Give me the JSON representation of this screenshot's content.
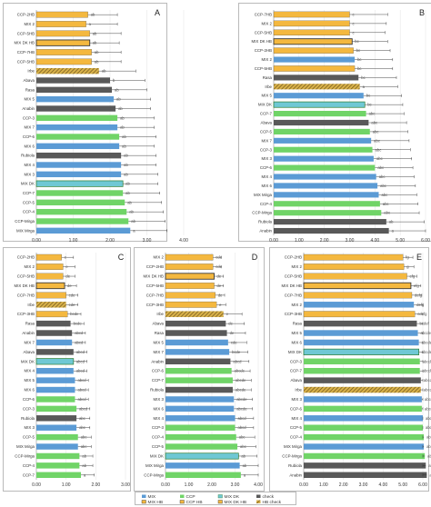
{
  "colors": {
    "MIX": "#5b9bd5",
    "CCP": "#70d467",
    "MIX DK": "#6fc8d4",
    "check": "#595959",
    "MIX HB": "#f4b83f",
    "CCP HB": "#f4b83f",
    "MIX DK HB": "#f4b83f",
    "HB check": "#b48a2a"
  },
  "legend": {
    "items": [
      {
        "label": "MIX",
        "key": "MIX"
      },
      {
        "label": "CCP",
        "key": "CCP"
      },
      {
        "label": "MIX DK",
        "key": "MIX DK"
      },
      {
        "label": "check",
        "key": "check"
      },
      {
        "label": "MIX HB",
        "key": "MIX HB"
      },
      {
        "label": "CCP HB",
        "key": "CCP HB"
      },
      {
        "label": "MIX DK HB",
        "key": "MIX DK HB"
      },
      {
        "label": "HB check",
        "key": "HB check"
      }
    ]
  },
  "chart_data": [
    {
      "panel": "A",
      "type": "bar",
      "orientation": "horizontal",
      "xlim": [
        0,
        4
      ],
      "ticks": [
        "0.00",
        "1.00",
        "2.00",
        "3.00",
        "4.00"
      ],
      "bars": [
        {
          "label": "CCP-2HB",
          "value": 1.4,
          "err": 0.8,
          "group": "CCP HB",
          "sig": "ab"
        },
        {
          "label": "MIX 2",
          "value": 1.35,
          "err": 0.85,
          "group": "MIX HB",
          "sig": "a"
        },
        {
          "label": "CCP-5HB",
          "value": 1.45,
          "err": 0.85,
          "group": "CCP HB",
          "sig": "ab"
        },
        {
          "label": "MIX DK HB",
          "value": 1.45,
          "err": 0.8,
          "group": "MIX DK HB",
          "sig": "ab"
        },
        {
          "label": "CCP-7HB",
          "value": 1.5,
          "err": 0.8,
          "group": "CCP HB",
          "sig": "ab"
        },
        {
          "label": "CCP-5HB",
          "value": 1.5,
          "err": 0.8,
          "group": "CCP HB",
          "sig": "ab"
        },
        {
          "label": "Irbe",
          "value": 1.7,
          "err": 1.0,
          "group": "HB check",
          "sig": "ab"
        },
        {
          "label": "Abava",
          "value": 2.0,
          "err": 0.95,
          "group": "check",
          "sig": "b"
        },
        {
          "label": "Rasa",
          "value": 2.05,
          "err": 0.95,
          "group": "check",
          "sig": "ab"
        },
        {
          "label": "MIX 5",
          "value": 2.1,
          "err": 1.0,
          "group": "MIX",
          "sig": "ab"
        },
        {
          "label": "Anabin",
          "value": 2.15,
          "err": 0.95,
          "group": "check",
          "sig": "ab"
        },
        {
          "label": "CCP-3",
          "value": 2.2,
          "err": 1.0,
          "group": "CCP",
          "sig": "ab"
        },
        {
          "label": "MIX 7",
          "value": 2.2,
          "err": 1.0,
          "group": "MIX",
          "sig": "ab"
        },
        {
          "label": "CCP-6",
          "value": 2.25,
          "err": 1.0,
          "group": "CCP",
          "sig": "ab"
        },
        {
          "label": "MIX 6",
          "value": 2.25,
          "err": 0.95,
          "group": "MIX",
          "sig": "ab"
        },
        {
          "label": "Rubiola",
          "value": 2.3,
          "err": 0.95,
          "group": "check",
          "sig": "ab"
        },
        {
          "label": "MIX 4",
          "value": 2.3,
          "err": 0.95,
          "group": "MIX",
          "sig": "ab"
        },
        {
          "label": "MIX 3",
          "value": 2.3,
          "err": 1.0,
          "group": "MIX",
          "sig": "ab"
        },
        {
          "label": "MIX DK",
          "value": 2.35,
          "err": 0.95,
          "group": "MIX DK",
          "sig": "ab"
        },
        {
          "label": "CCP-7",
          "value": 2.35,
          "err": 1.0,
          "group": "CCP",
          "sig": "ab"
        },
        {
          "label": "CCP-5",
          "value": 2.4,
          "err": 1.0,
          "group": "CCP",
          "sig": "ab"
        },
        {
          "label": "CCP-4",
          "value": 2.45,
          "err": 1.0,
          "group": "CCP",
          "sig": "ab"
        },
        {
          "label": "CCP-Mirga",
          "value": 2.5,
          "err": 1.0,
          "group": "CCP",
          "sig": "ab"
        },
        {
          "label": "MIX Mirga",
          "value": 2.55,
          "err": 1.0,
          "group": "MIX",
          "sig": "a"
        }
      ]
    },
    {
      "panel": "B",
      "type": "bar",
      "orientation": "horizontal",
      "xlim": [
        0,
        6
      ],
      "ticks": [
        "0.00",
        "1.00",
        "2.00",
        "3.00",
        "4.00",
        "5.00",
        "6.00"
      ],
      "bars": [
        {
          "label": "CCP-7HB",
          "value": 3.0,
          "err": 1.5,
          "group": "CCP HB",
          "sig": "c"
        },
        {
          "label": "MIX 2",
          "value": 3.0,
          "err": 1.45,
          "group": "MIX HB",
          "sig": "c"
        },
        {
          "label": "CCP-5HB",
          "value": 3.0,
          "err": 1.4,
          "group": "CCP HB",
          "sig": "c"
        },
        {
          "label": "MIX DK HB",
          "value": 3.1,
          "err": 1.4,
          "group": "MIX DK HB",
          "sig": "bc"
        },
        {
          "label": "CCP-2HB",
          "value": 3.15,
          "err": 1.45,
          "group": "CCP HB",
          "sig": "bc"
        },
        {
          "label": "MIX 2",
          "value": 3.2,
          "err": 1.5,
          "group": "MIX",
          "sig": "bc"
        },
        {
          "label": "CCP-5HB",
          "value": 3.2,
          "err": 1.5,
          "group": "CCP HB",
          "sig": "bc"
        },
        {
          "label": "Rasa",
          "value": 3.35,
          "err": 1.5,
          "group": "check",
          "sig": "bc"
        },
        {
          "label": "Irbe",
          "value": 3.4,
          "err": 1.5,
          "group": "HB check",
          "sig": "a"
        },
        {
          "label": "MIX 5",
          "value": 3.55,
          "err": 1.5,
          "group": "MIX",
          "sig": "bc"
        },
        {
          "label": "MIX DK",
          "value": 3.6,
          "err": 1.5,
          "group": "MIX DK",
          "sig": "bc"
        },
        {
          "label": "CCP-7",
          "value": 3.65,
          "err": 1.5,
          "group": "CCP",
          "sig": "abc"
        },
        {
          "label": "Abava",
          "value": 3.75,
          "err": 1.5,
          "group": "check",
          "sig": "abc"
        },
        {
          "label": "CCP-5",
          "value": 3.8,
          "err": 1.5,
          "group": "CCP",
          "sig": "abc"
        },
        {
          "label": "MIX 7",
          "value": 3.85,
          "err": 1.5,
          "group": "MIX",
          "sig": "abc"
        },
        {
          "label": "CCP-3",
          "value": 3.9,
          "err": 1.5,
          "group": "CCP",
          "sig": "abc"
        },
        {
          "label": "MIX 3",
          "value": 3.95,
          "err": 1.5,
          "group": "MIX",
          "sig": "abc"
        },
        {
          "label": "CCP-6",
          "value": 4.0,
          "err": 1.5,
          "group": "CCP",
          "sig": "abc"
        },
        {
          "label": "MIX 4",
          "value": 4.05,
          "err": 1.5,
          "group": "MIX",
          "sig": "abc"
        },
        {
          "label": "MIX 6",
          "value": 4.1,
          "err": 1.5,
          "group": "MIX",
          "sig": "abc"
        },
        {
          "label": "MIX Mirga",
          "value": 4.15,
          "err": 1.5,
          "group": "MIX",
          "sig": "abc"
        },
        {
          "label": "CCP-4",
          "value": 4.2,
          "err": 1.5,
          "group": "CCP",
          "sig": "abc"
        },
        {
          "label": "CCP-Mirga",
          "value": 4.25,
          "err": 1.5,
          "group": "CCP",
          "sig": "abc"
        },
        {
          "label": "Rubiola",
          "value": 4.45,
          "err": 1.5,
          "group": "check",
          "sig": "ab"
        },
        {
          "label": "Anabin",
          "value": 4.55,
          "err": 1.5,
          "group": "check",
          "sig": "a"
        }
      ]
    },
    {
      "panel": "C",
      "type": "bar",
      "orientation": "horizontal",
      "xlim": [
        0,
        3
      ],
      "ticks": [
        "0.00",
        "1.00",
        "2.00",
        "3.00"
      ],
      "bars": [
        {
          "label": "CCP-2HB",
          "value": 0.85,
          "err": 0.4,
          "group": "CCP HB",
          "sig": "e"
        },
        {
          "label": "MIX 2",
          "value": 0.9,
          "err": 0.4,
          "group": "MIX HB",
          "sig": "e"
        },
        {
          "label": "CCP-5HB",
          "value": 0.9,
          "err": 0.4,
          "group": "CCP HB",
          "sig": "de"
        },
        {
          "label": "MIX DK HB",
          "value": 0.95,
          "err": 0.4,
          "group": "MIX DK HB",
          "sig": "de"
        },
        {
          "label": "CCP-7HB",
          "value": 1.0,
          "err": 0.4,
          "group": "CCP HB",
          "sig": "cde"
        },
        {
          "label": "Irbe",
          "value": 1.0,
          "err": 0.4,
          "group": "HB check",
          "sig": "cde"
        },
        {
          "label": "CCP-3HB",
          "value": 1.05,
          "err": 0.45,
          "group": "CCP HB",
          "sig": "bcde"
        },
        {
          "label": "Rasa",
          "value": 1.15,
          "err": 0.45,
          "group": "check",
          "sig": "bcde"
        },
        {
          "label": "Anabin",
          "value": 1.2,
          "err": 0.45,
          "group": "check",
          "sig": "abcd"
        },
        {
          "label": "MIX 7",
          "value": 1.2,
          "err": 0.45,
          "group": "MIX",
          "sig": "abcd"
        },
        {
          "label": "Abava",
          "value": 1.25,
          "err": 0.45,
          "group": "check",
          "sig": "abcd"
        },
        {
          "label": "MIX DK",
          "value": 1.25,
          "err": 0.45,
          "group": "MIX DK",
          "sig": "abcd"
        },
        {
          "label": "MIX 4",
          "value": 1.25,
          "err": 0.45,
          "group": "MIX",
          "sig": "abcd"
        },
        {
          "label": "MIX 5",
          "value": 1.3,
          "err": 0.45,
          "group": "MIX",
          "sig": "abcd"
        },
        {
          "label": "MIX 6",
          "value": 1.3,
          "err": 0.45,
          "group": "MIX",
          "sig": "abcd"
        },
        {
          "label": "CCP-6",
          "value": 1.3,
          "err": 0.45,
          "group": "CCP",
          "sig": "abcd"
        },
        {
          "label": "CCP-3",
          "value": 1.35,
          "err": 0.45,
          "group": "CCP",
          "sig": "abcd"
        },
        {
          "label": "Rubiola",
          "value": 1.35,
          "err": 0.45,
          "group": "check",
          "sig": "abc"
        },
        {
          "label": "MIX 3",
          "value": 1.35,
          "err": 0.45,
          "group": "MIX",
          "sig": "abc"
        },
        {
          "label": "CCP-5",
          "value": 1.4,
          "err": 0.45,
          "group": "CCP",
          "sig": "abc"
        },
        {
          "label": "MIX Mirga",
          "value": 1.4,
          "err": 0.45,
          "group": "MIX",
          "sig": "abc"
        },
        {
          "label": "CCP-Mirga",
          "value": 1.45,
          "err": 0.45,
          "group": "CCP",
          "sig": "ab"
        },
        {
          "label": "CCP-4",
          "value": 1.45,
          "err": 0.45,
          "group": "CCP",
          "sig": "ab"
        },
        {
          "label": "CCP-7",
          "value": 1.5,
          "err": 0.45,
          "group": "CCP",
          "sig": "a"
        }
      ]
    },
    {
      "panel": "D",
      "type": "bar",
      "orientation": "horizontal",
      "xlim": [
        0,
        4
      ],
      "ticks": [
        "0.00",
        "1.00",
        "2.00",
        "3.00",
        "4.00"
      ],
      "bars": [
        {
          "label": "MIX 2",
          "value": 2.05,
          "err": 0.35,
          "group": "MIX HB",
          "sig": "cde"
        },
        {
          "label": "CCP-2HB",
          "value": 2.05,
          "err": 0.35,
          "group": "CCP HB",
          "sig": "cde"
        },
        {
          "label": "MIX DK HB",
          "value": 2.1,
          "err": 0.4,
          "group": "MIX DK HB",
          "sig": "de"
        },
        {
          "label": "CCP-5HB",
          "value": 2.1,
          "err": 0.4,
          "group": "CCP HB",
          "sig": "de"
        },
        {
          "label": "CCP-7HB",
          "value": 2.15,
          "err": 0.4,
          "group": "CCP HB",
          "sig": "de"
        },
        {
          "label": "CCP-3HB",
          "value": 2.2,
          "err": 0.4,
          "group": "CCP HB",
          "sig": "e"
        },
        {
          "label": "Irbe",
          "value": 2.5,
          "err": 0.8,
          "group": "HB check",
          "sig": "e"
        },
        {
          "label": "Abava",
          "value": 2.6,
          "err": 0.8,
          "group": "check",
          "sig": "de"
        },
        {
          "label": "Rasa",
          "value": 2.65,
          "err": 0.8,
          "group": "check",
          "sig": "de"
        },
        {
          "label": "MIX 5",
          "value": 2.7,
          "err": 0.8,
          "group": "MIX",
          "sig": "cde"
        },
        {
          "label": "MIX 7",
          "value": 2.75,
          "err": 0.8,
          "group": "MIX",
          "sig": "bcde"
        },
        {
          "label": "Anabin",
          "value": 2.8,
          "err": 0.8,
          "group": "check",
          "sig": "abcd"
        },
        {
          "label": "CCP-6",
          "value": 2.85,
          "err": 0.8,
          "group": "CCP",
          "sig": "abcde"
        },
        {
          "label": "CCP-7",
          "value": 2.9,
          "err": 0.8,
          "group": "CCP",
          "sig": "abcde"
        },
        {
          "label": "Rubiola",
          "value": 2.9,
          "err": 0.8,
          "group": "check",
          "sig": "abcde"
        },
        {
          "label": "MIX 3",
          "value": 2.95,
          "err": 0.8,
          "group": "MIX",
          "sig": "abcde"
        },
        {
          "label": "MIX 6",
          "value": 2.95,
          "err": 0.8,
          "group": "MIX",
          "sig": "abcde"
        },
        {
          "label": "MIX 4",
          "value": 3.0,
          "err": 0.8,
          "group": "MIX",
          "sig": "abcd"
        },
        {
          "label": "CCP-3",
          "value": 3.0,
          "err": 0.8,
          "group": "CCP",
          "sig": "abcd"
        },
        {
          "label": "CCP-4",
          "value": 3.05,
          "err": 0.8,
          "group": "CCP",
          "sig": "abc"
        },
        {
          "label": "CCP-5",
          "value": 3.1,
          "err": 0.8,
          "group": "CCP",
          "sig": "abc"
        },
        {
          "label": "MIX DK",
          "value": 3.15,
          "err": 0.8,
          "group": "MIX DK",
          "sig": "ab"
        },
        {
          "label": "MIX Mirga",
          "value": 3.2,
          "err": 0.8,
          "group": "MIX",
          "sig": "ab"
        },
        {
          "label": "CCP-Mirga",
          "value": 3.25,
          "err": 0.8,
          "group": "CCP",
          "sig": "a"
        }
      ]
    },
    {
      "panel": "E",
      "type": "bar",
      "orientation": "horizontal",
      "xlim": [
        0,
        6
      ],
      "ticks": [
        "0.00",
        "1.00",
        "2.00",
        "3.00",
        "4.00",
        "5.00",
        "6.00"
      ],
      "bars": [
        {
          "label": "CCP-2HB",
          "value": 5.0,
          "err": 0.5,
          "group": "CCP HB",
          "sig": "fg"
        },
        {
          "label": "MIX 2",
          "value": 5.05,
          "err": 0.5,
          "group": "MIX HB",
          "sig": "g"
        },
        {
          "label": "CCP-5HB",
          "value": 5.2,
          "err": 0.5,
          "group": "CCP HB",
          "sig": "efg"
        },
        {
          "label": "MIX DK HB",
          "value": 5.4,
          "err": 0.5,
          "group": "MIX DK HB",
          "sig": "efg"
        },
        {
          "label": "CCP-7HB",
          "value": 5.45,
          "err": 0.5,
          "group": "CCP HB",
          "sig": "defg"
        },
        {
          "label": "MIX 2",
          "value": 5.55,
          "err": 0.5,
          "group": "MIX",
          "sig": "defg"
        },
        {
          "label": "CCP-3HB",
          "value": 5.6,
          "err": 0.5,
          "group": "CCP HB",
          "sig": "cdefg"
        },
        {
          "label": "Rasa",
          "value": 5.7,
          "err": 0.5,
          "group": "check",
          "sig": "bcdef"
        },
        {
          "label": "MIX 5",
          "value": 5.75,
          "err": 0.5,
          "group": "MIX",
          "sig": "abcdef"
        },
        {
          "label": "MIX 6",
          "value": 5.8,
          "err": 0.5,
          "group": "MIX",
          "sig": "abcdef"
        },
        {
          "label": "MIX DK",
          "value": 5.8,
          "err": 0.5,
          "group": "MIX DK",
          "sig": "abcdef"
        },
        {
          "label": "CCP-3",
          "value": 5.85,
          "err": 0.5,
          "group": "CCP",
          "sig": "abcdef"
        },
        {
          "label": "CCP-7",
          "value": 5.85,
          "err": 0.5,
          "group": "CCP",
          "sig": "abcdef"
        },
        {
          "label": "Abava",
          "value": 5.9,
          "err": 0.5,
          "group": "check",
          "sig": "abcde"
        },
        {
          "label": "Irbe",
          "value": 5.9,
          "err": 0.5,
          "group": "HB check",
          "sig": "abcde"
        },
        {
          "label": "MIX 3",
          "value": 5.95,
          "err": 0.5,
          "group": "MIX",
          "sig": "abcde"
        },
        {
          "label": "CCP-6",
          "value": 5.95,
          "err": 0.5,
          "group": "CCP",
          "sig": "abcde"
        },
        {
          "label": "MIX 4",
          "value": 6.0,
          "err": 0.5,
          "group": "MIX",
          "sig": "abcd"
        },
        {
          "label": "CCP-5",
          "value": 6.0,
          "err": 0.5,
          "group": "CCP",
          "sig": "abcd"
        },
        {
          "label": "CCP-4",
          "value": 6.05,
          "err": 0.5,
          "group": "CCP",
          "sig": "abc"
        },
        {
          "label": "MIX Mirga",
          "value": 6.05,
          "err": 0.5,
          "group": "MIX",
          "sig": "abc"
        },
        {
          "label": "CCP-Mirga",
          "value": 6.1,
          "err": 0.5,
          "group": "CCP",
          "sig": "ab"
        },
        {
          "label": "Rubiola",
          "value": 6.15,
          "err": 0.5,
          "group": "check",
          "sig": "ab"
        },
        {
          "label": "Anabin",
          "value": 6.2,
          "err": 0.5,
          "group": "check",
          "sig": "a"
        }
      ]
    }
  ]
}
